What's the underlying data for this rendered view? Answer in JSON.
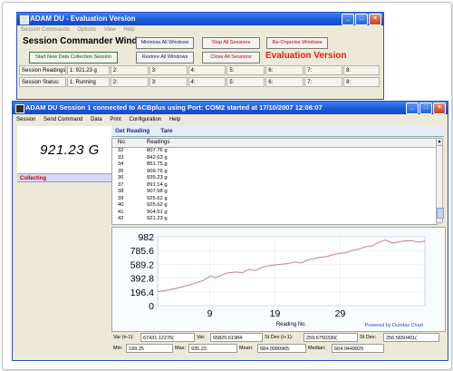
{
  "commander": {
    "title": "ADAM DU - Evaluation Version",
    "menu": [
      "Session Commands",
      "Options",
      "View",
      "Help"
    ],
    "heading": "Session Commander Window",
    "buttons": {
      "minimise": "Minimise All Windows",
      "stop": "Stop All Sessions",
      "reorganise": "Re-Organise Windows",
      "start": "Start New Data Collection Session",
      "restore": "Restore All Windows",
      "close": "Close All Sessions"
    },
    "evaluation_label": "Evaluation Version",
    "readings_row": [
      "Session Readings:",
      "1:  921.23 g",
      "2:",
      "3:",
      "4:",
      "5:",
      "6:",
      "7:",
      "8:"
    ],
    "status_row": [
      "Session Status:",
      "1:  Running",
      "2:",
      "3:",
      "4:",
      "5:",
      "6:",
      "7:",
      "8:"
    ]
  },
  "session": {
    "title": "ADAM DU Session 1 connected to ACBplus using Port: COM2 started at 17/10/2007 12:08:07",
    "menu": [
      "Session",
      "Send Command",
      "Data",
      "Print",
      "Configuration",
      "Help"
    ],
    "reading": "921.23 G",
    "state": "Collecting",
    "tabs": [
      "Get Reading",
      "Tare"
    ],
    "table": {
      "headers": [
        "No.",
        "Readings"
      ],
      "rows": [
        [
          "32",
          "807.76 g"
        ],
        [
          "33",
          "842.63 g"
        ],
        [
          "34",
          "851.75 g"
        ],
        [
          "35",
          "909.76 g"
        ],
        [
          "36",
          "935.23 g"
        ],
        [
          "37",
          "891.14 g"
        ],
        [
          "38",
          "907.98 g"
        ],
        [
          "39",
          "925.62 g"
        ],
        [
          "40",
          "925.62 g"
        ],
        [
          "41",
          "904.51 g"
        ],
        [
          "42",
          "921.23 g"
        ]
      ]
    },
    "stats1": [
      {
        "label": "Var (n-1):",
        "value": "67431.12276("
      },
      {
        "label": "Var:",
        "value": "65825.61984:"
      },
      {
        "label": "St Dev (n-1):",
        "value": "259.6750330("
      },
      {
        "label": "St Dev:",
        "value": "256.5650401("
      }
    ],
    "stats2": [
      {
        "label": "Min:",
        "value": "199.25"
      },
      {
        "label": "Max:",
        "value": "935.23"
      },
      {
        "label": "Mean:",
        "value": "584.0980965:"
      },
      {
        "label": "Median:",
        "value": "664.0449829"
      }
    ]
  },
  "colors": {
    "titlebar": "#1a58d8",
    "chart_line": "#d08a8a",
    "evaluation": "#e02010",
    "tabs": "#10308a"
  },
  "chart_data": {
    "type": "line",
    "xlabel": "Reading No.",
    "ylabel": "",
    "credit": "Powered by Dundas Chart",
    "yticks": [
      "982",
      "785.6",
      "589.2",
      "392.8",
      "196.4",
      "0"
    ],
    "xticks": [
      "9",
      "19",
      "29"
    ],
    "ylim": [
      0,
      982
    ],
    "xlim": [
      1,
      42
    ],
    "series": [
      {
        "name": "Readings",
        "x": [
          1,
          2,
          3,
          4,
          5,
          6,
          7,
          8,
          9,
          10,
          11,
          12,
          13,
          14,
          15,
          16,
          17,
          18,
          19,
          20,
          21,
          22,
          23,
          24,
          25,
          26,
          27,
          28,
          29,
          30,
          31,
          32,
          33,
          34,
          35,
          36,
          37,
          38,
          39,
          40,
          41,
          42
        ],
        "values": [
          199.25,
          210,
          230,
          250,
          275,
          300,
          330,
          360,
          420,
          400,
          445,
          470,
          480,
          470,
          520,
          500,
          545,
          570,
          580,
          590,
          600,
          620,
          610,
          650,
          670,
          690,
          700,
          730,
          745,
          760,
          790,
          807.76,
          842.63,
          851.75,
          909.76,
          935.23,
          891.14,
          907.98,
          925.62,
          925.62,
          904.51,
          921.23
        ]
      }
    ]
  }
}
